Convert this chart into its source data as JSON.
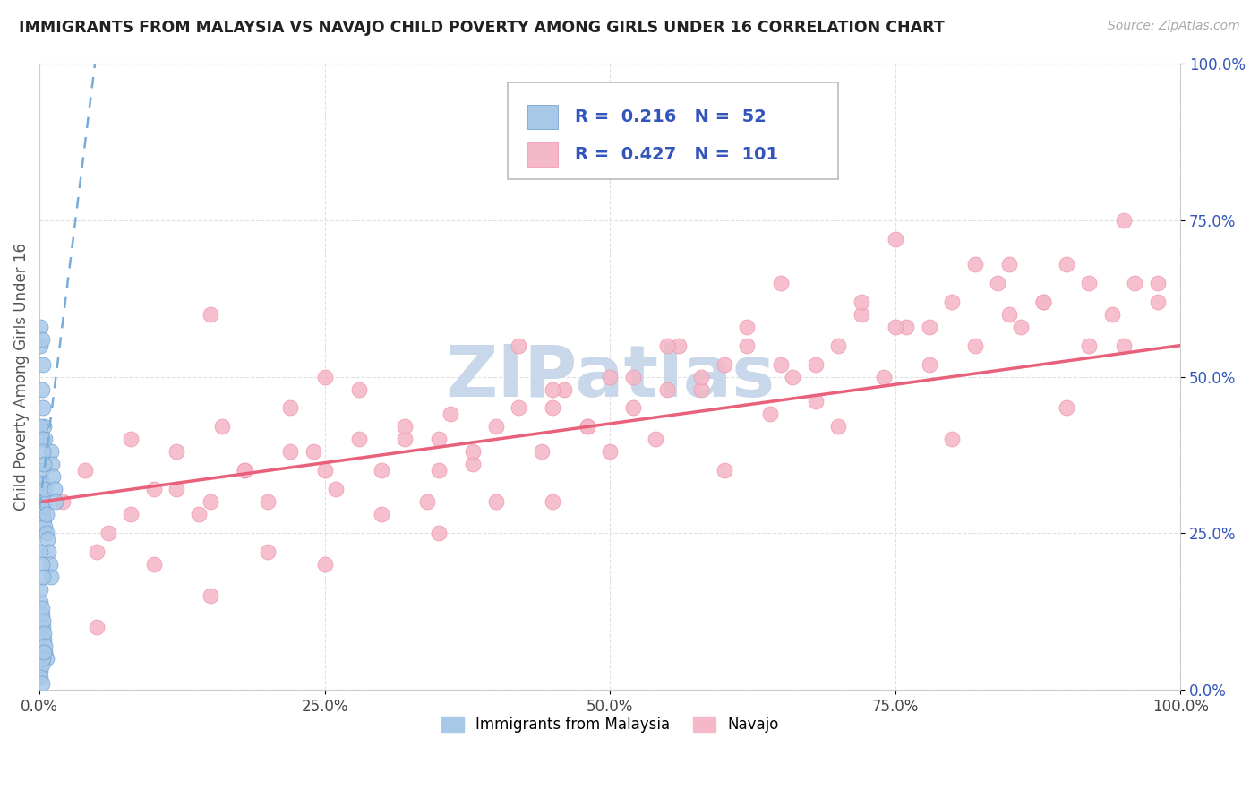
{
  "title": "IMMIGRANTS FROM MALAYSIA VS NAVAJO CHILD POVERTY AMONG GIRLS UNDER 16 CORRELATION CHART",
  "source": "Source: ZipAtlas.com",
  "ylabel": "Child Poverty Among Girls Under 16",
  "watermark": "ZIPatlas",
  "blue_R": 0.216,
  "blue_N": 52,
  "pink_R": 0.427,
  "pink_N": 101,
  "blue_label": "Immigrants from Malaysia",
  "pink_label": "Navajo",
  "blue_color": "#a8c8e8",
  "pink_color": "#f4b8c8",
  "blue_dot_color": "#6699cc",
  "pink_dot_color": "#f090a8",
  "blue_line_color": "#7aacda",
  "pink_line_color": "#e8607a",
  "axis_color": "#cccccc",
  "grid_color": "#e0e0e0",
  "title_color": "#222222",
  "source_color": "#aaaaaa",
  "watermark_color": "#c8d8ea",
  "legend_color": "#3355bb",
  "blue_x": [
    0.001,
    0.002,
    0.002,
    0.003,
    0.003,
    0.004,
    0.004,
    0.005,
    0.005,
    0.006,
    0.006,
    0.007,
    0.008,
    0.009,
    0.01,
    0.01,
    0.011,
    0.012,
    0.013,
    0.014,
    0.001,
    0.002,
    0.003,
    0.004,
    0.005,
    0.001,
    0.002,
    0.003,
    0.004,
    0.005,
    0.001,
    0.002,
    0.003,
    0.004,
    0.005,
    0.006,
    0.001,
    0.002,
    0.003,
    0.004,
    0.001,
    0.002,
    0.003,
    0.004,
    0.001,
    0.002,
    0.003,
    0.001,
    0.002,
    0.003,
    0.001,
    0.002
  ],
  "blue_y": [
    0.31,
    0.29,
    0.35,
    0.28,
    0.33,
    0.27,
    0.3,
    0.26,
    0.32,
    0.25,
    0.28,
    0.24,
    0.22,
    0.2,
    0.18,
    0.38,
    0.36,
    0.34,
    0.32,
    0.3,
    0.55,
    0.48,
    0.45,
    0.42,
    0.4,
    0.14,
    0.12,
    0.1,
    0.08,
    0.06,
    0.16,
    0.13,
    0.11,
    0.09,
    0.07,
    0.05,
    0.42,
    0.4,
    0.38,
    0.36,
    0.03,
    0.04,
    0.05,
    0.06,
    0.22,
    0.2,
    0.18,
    0.58,
    0.56,
    0.52,
    0.02,
    0.01
  ],
  "pink_x": [
    0.02,
    0.04,
    0.06,
    0.08,
    0.1,
    0.12,
    0.14,
    0.16,
    0.18,
    0.2,
    0.22,
    0.24,
    0.26,
    0.28,
    0.3,
    0.32,
    0.34,
    0.36,
    0.38,
    0.4,
    0.42,
    0.44,
    0.46,
    0.48,
    0.5,
    0.52,
    0.54,
    0.56,
    0.58,
    0.6,
    0.62,
    0.64,
    0.66,
    0.68,
    0.7,
    0.72,
    0.74,
    0.76,
    0.78,
    0.8,
    0.82,
    0.84,
    0.86,
    0.88,
    0.9,
    0.92,
    0.94,
    0.96,
    0.98,
    0.1,
    0.2,
    0.3,
    0.4,
    0.5,
    0.6,
    0.7,
    0.8,
    0.9,
    0.15,
    0.25,
    0.35,
    0.45,
    0.55,
    0.65,
    0.75,
    0.85,
    0.95,
    0.05,
    0.15,
    0.25,
    0.35,
    0.45,
    0.55,
    0.65,
    0.75,
    0.85,
    0.95,
    0.08,
    0.18,
    0.28,
    0.38,
    0.48,
    0.58,
    0.68,
    0.78,
    0.88,
    0.98,
    0.12,
    0.22,
    0.32,
    0.42,
    0.52,
    0.62,
    0.72,
    0.82,
    0.92,
    0.05,
    0.15,
    0.25,
    0.35,
    0.45
  ],
  "pink_y": [
    0.3,
    0.35,
    0.25,
    0.4,
    0.32,
    0.38,
    0.28,
    0.42,
    0.35,
    0.3,
    0.45,
    0.38,
    0.32,
    0.48,
    0.35,
    0.4,
    0.3,
    0.44,
    0.36,
    0.42,
    0.55,
    0.38,
    0.48,
    0.42,
    0.5,
    0.45,
    0.4,
    0.55,
    0.48,
    0.52,
    0.58,
    0.44,
    0.5,
    0.46,
    0.55,
    0.6,
    0.5,
    0.58,
    0.52,
    0.62,
    0.55,
    0.65,
    0.58,
    0.62,
    0.68,
    0.55,
    0.6,
    0.65,
    0.62,
    0.2,
    0.22,
    0.28,
    0.3,
    0.38,
    0.35,
    0.42,
    0.4,
    0.45,
    0.6,
    0.5,
    0.35,
    0.48,
    0.55,
    0.65,
    0.72,
    0.68,
    0.75,
    0.22,
    0.3,
    0.35,
    0.4,
    0.45,
    0.48,
    0.52,
    0.58,
    0.6,
    0.55,
    0.28,
    0.35,
    0.4,
    0.38,
    0.42,
    0.5,
    0.52,
    0.58,
    0.62,
    0.65,
    0.32,
    0.38,
    0.42,
    0.45,
    0.5,
    0.55,
    0.62,
    0.68,
    0.65,
    0.1,
    0.15,
    0.2,
    0.25,
    0.3
  ],
  "xlim": [
    0,
    1.0
  ],
  "ylim": [
    0,
    1.0
  ],
  "xticks": [
    0.0,
    0.25,
    0.5,
    0.75,
    1.0
  ],
  "yticks": [
    0.0,
    0.25,
    0.5,
    0.75,
    1.0
  ],
  "xticklabels": [
    "0.0%",
    "25.0%",
    "50.0%",
    "75.0%",
    "100.0%"
  ],
  "yticklabels": [
    "0.0%",
    "25.0%",
    "50.0%",
    "75.0%",
    "100.0%"
  ],
  "pink_line_x0": 0.0,
  "pink_line_y0": 0.3,
  "pink_line_x1": 1.0,
  "pink_line_y1": 0.55,
  "blue_line_x0": 0.0,
  "blue_line_y0": 0.29,
  "blue_line_x1": 0.05,
  "blue_line_y1": 1.02
}
